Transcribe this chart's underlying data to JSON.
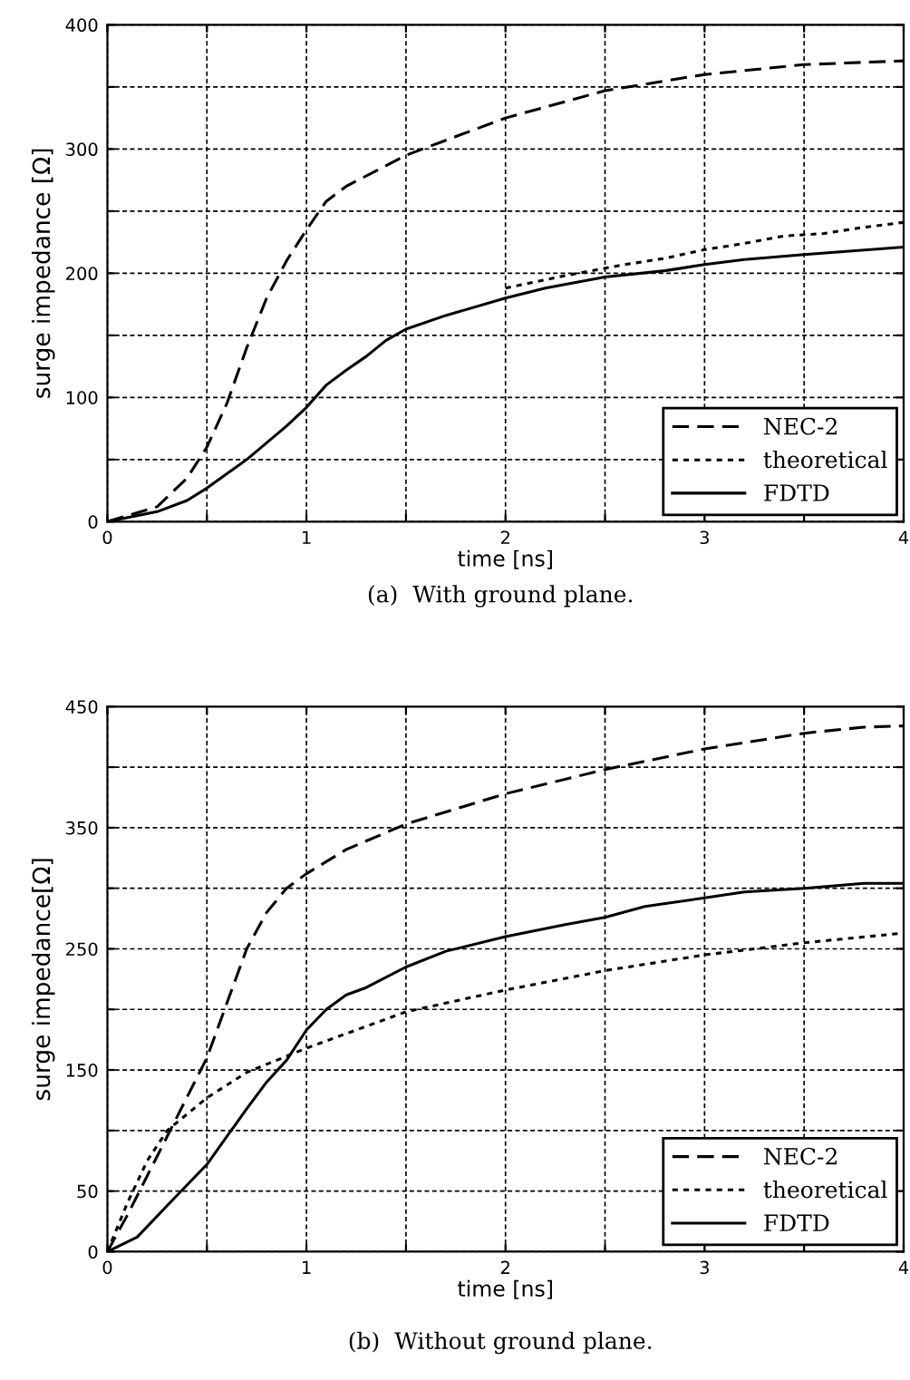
{
  "chart_data": [
    {
      "type": "line",
      "xlabel": "time [ns]",
      "ylabel": "surge impedance [Ω]",
      "annotations": [
        "(a)  With ground plane."
      ],
      "xlim": [
        0,
        4
      ],
      "ylim": [
        0,
        400
      ],
      "xticks": [
        0,
        {
          "value": 0.5,
          "label": null
        },
        1,
        {
          "value": 1.5,
          "label": null
        },
        2,
        {
          "value": 2.5,
          "label": null
        },
        3,
        {
          "value": 3.5,
          "label": null
        },
        4
      ],
      "yticks": [
        0,
        {
          "value": 50,
          "label": null
        },
        100,
        {
          "value": 150,
          "label": null
        },
        200,
        {
          "value": 250,
          "label": null
        },
        300,
        {
          "value": 350,
          "label": null
        },
        400
      ],
      "grid": true,
      "legend": "bottom right",
      "series": [
        {
          "name": "NEC-2",
          "color": "#000000",
          "line_style": "dashed",
          "x": [
            0,
            0.25,
            0.4,
            0.5,
            0.6,
            0.7,
            0.8,
            0.9,
            1.0,
            1.1,
            1.2,
            1.5,
            2.0,
            2.5,
            3.0,
            3.5,
            4.0
          ],
          "values": [
            0,
            12,
            35,
            60,
            95,
            140,
            180,
            210,
            235,
            258,
            270,
            295,
            325,
            347,
            360,
            368,
            371
          ]
        },
        {
          "name": "theoretical",
          "color": "#000000",
          "line_style": "dotted",
          "x": [
            2.0,
            2.3,
            2.6,
            2.8,
            3.0,
            3.2,
            3.4,
            3.6,
            3.8,
            4.0
          ],
          "values": [
            188,
            198,
            207,
            212,
            219,
            224,
            230,
            232,
            237,
            241
          ]
        },
        {
          "name": "FDTD",
          "color": "#000000",
          "line_style": "solid",
          "x": [
            0,
            0.25,
            0.4,
            0.5,
            0.7,
            0.9,
            1.0,
            1.1,
            1.2,
            1.3,
            1.4,
            1.5,
            1.7,
            2.0,
            2.2,
            2.5,
            2.8,
            3.0,
            3.2,
            3.5,
            4.0
          ],
          "values": [
            0,
            8,
            17,
            27,
            50,
            77,
            92,
            110,
            122,
            133,
            146,
            155,
            166,
            180,
            188,
            197,
            202,
            207,
            211,
            215,
            221
          ]
        }
      ]
    },
    {
      "type": "line",
      "xlabel": "time [ns]",
      "ylabel": "surge impedance[Ω]",
      "annotations": [
        "(b)  Without ground plane."
      ],
      "xlim": [
        0,
        4
      ],
      "ylim": [
        0,
        450
      ],
      "xticks": [
        0,
        {
          "value": 0.5,
          "label": null
        },
        1,
        {
          "value": 1.5,
          "label": null
        },
        2,
        {
          "value": 2.5,
          "label": null
        },
        3,
        {
          "value": 3.5,
          "label": null
        },
        4
      ],
      "yticks": [
        0,
        50,
        {
          "value": 100,
          "label": null
        },
        150,
        {
          "value": 200,
          "label": null
        },
        250,
        {
          "value": 300,
          "label": null
        },
        350,
        {
          "value": 400,
          "label": null
        },
        450
      ],
      "grid": true,
      "legend": "bottom right",
      "series": [
        {
          "name": "NEC-2",
          "color": "#000000",
          "line_style": "dashed",
          "x": [
            0,
            0.1,
            0.3,
            0.5,
            0.6,
            0.7,
            0.8,
            0.9,
            1.0,
            1.2,
            1.5,
            2.0,
            2.5,
            3.0,
            3.5,
            3.8,
            4.0
          ],
          "values": [
            0,
            30,
            95,
            160,
            205,
            250,
            280,
            300,
            312,
            332,
            353,
            378,
            398,
            415,
            428,
            433,
            434
          ]
        },
        {
          "name": "theoretical",
          "color": "#000000",
          "line_style": "dotted",
          "x": [
            0,
            0.1,
            0.2,
            0.3,
            0.5,
            0.7,
            1.0,
            1.5,
            2.0,
            2.5,
            3.0,
            3.5,
            4.0
          ],
          "values": [
            0,
            40,
            75,
            100,
            127,
            148,
            168,
            198,
            216,
            232,
            245,
            255,
            263
          ]
        },
        {
          "name": "FDTD",
          "color": "#000000",
          "line_style": "solid",
          "x": [
            0,
            0.15,
            0.3,
            0.5,
            0.7,
            0.8,
            0.9,
            1.0,
            1.1,
            1.2,
            1.3,
            1.5,
            1.7,
            2.0,
            2.3,
            2.5,
            2.7,
            3.0,
            3.2,
            3.5,
            3.8,
            4.0
          ],
          "values": [
            0,
            12,
            38,
            72,
            118,
            140,
            158,
            183,
            200,
            212,
            218,
            235,
            248,
            260,
            270,
            276,
            285,
            292,
            297,
            300,
            304,
            304
          ]
        }
      ]
    }
  ]
}
